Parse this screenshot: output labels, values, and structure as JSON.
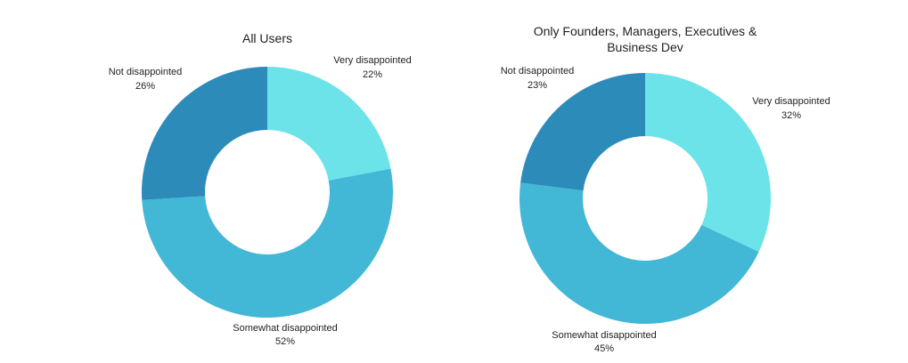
{
  "chart_data": [
    {
      "type": "pie",
      "title": "All Users",
      "title_lines": [
        "All Users"
      ],
      "categories": [
        "Very disappointed",
        "Somewhat disappointed",
        "Not disappointed"
      ],
      "values": [
        22,
        52,
        26
      ],
      "value_labels": [
        "22%",
        "52%",
        "26%"
      ],
      "colors": [
        "#6BE3E8",
        "#42B7D6",
        "#2D8BBA"
      ],
      "donut": true,
      "start": "top, clockwise",
      "legend": "none"
    },
    {
      "type": "pie",
      "title": "Only Founders, Managers, Executives & Business Dev",
      "title_lines": [
        "Only Founders, Managers, Executives &",
        "Business Dev"
      ],
      "categories": [
        "Very disappointed",
        "Somewhat disappointed",
        "Not disappointed"
      ],
      "values": [
        32,
        45,
        23
      ],
      "value_labels": [
        "32%",
        "45%",
        "23%"
      ],
      "colors": [
        "#6BE3E8",
        "#42B7D6",
        "#2D8BBA"
      ],
      "donut": true,
      "start": "top, clockwise",
      "legend": "none"
    }
  ]
}
